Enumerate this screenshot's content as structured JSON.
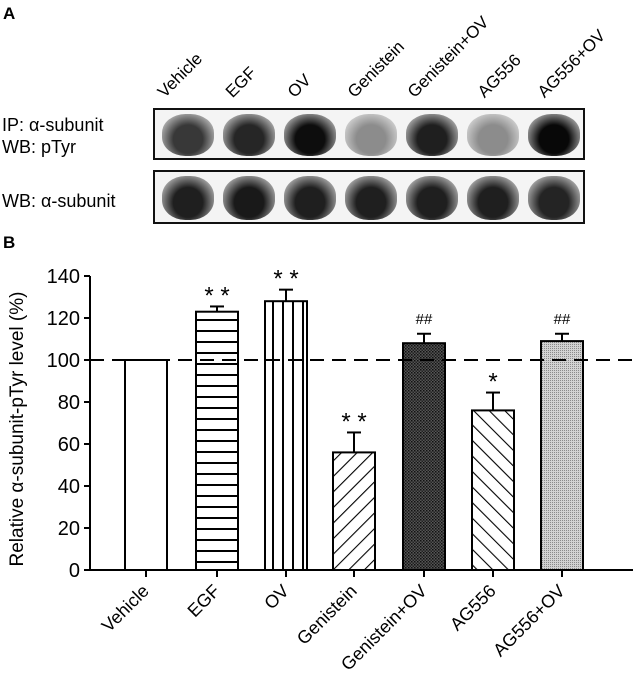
{
  "panel_a": {
    "label": "A",
    "lanes": [
      "Vehicle",
      "EGF",
      "OV",
      "Genistein",
      "Genistein+OV",
      "AG556",
      "AG556+OV"
    ],
    "blot1_label_line1": "IP: α-subunit",
    "blot1_label_line2": "WB: pTyr",
    "blot2_label": "WB: α-subunit",
    "blot1_band_intensity": [
      0.78,
      0.85,
      0.95,
      0.45,
      0.88,
      0.45,
      0.97
    ],
    "blot2_band_intensity": [
      0.88,
      0.9,
      0.88,
      0.88,
      0.88,
      0.88,
      0.86
    ]
  },
  "panel_b": {
    "label": "B"
  },
  "chart_data": {
    "type": "bar",
    "title": "",
    "xlabel": "",
    "ylabel": "Relative α-subunit-pTyr level (%)",
    "ylim": [
      0,
      140
    ],
    "yticks": [
      0,
      20,
      40,
      60,
      80,
      100,
      120,
      140
    ],
    "categories": [
      "Vehicle",
      "EGF",
      "OV",
      "Genistein",
      "Genistein+OV",
      "AG556",
      "AG556+OV"
    ],
    "values": [
      100,
      123,
      128,
      56,
      108,
      76,
      109
    ],
    "errors": [
      0,
      2.5,
      5.5,
      9.5,
      4.5,
      8.5,
      3.5
    ],
    "significance": [
      "",
      "**",
      "**",
      "**",
      "##",
      "*",
      "##"
    ],
    "patterns": [
      "none",
      "horizontal",
      "vertical",
      "diagonal-forward",
      "dense-crosshatch",
      "diagonal-back",
      "fine-dots"
    ],
    "reference_line": {
      "y": 100,
      "style": "dashed"
    },
    "grid": false,
    "legend": null
  }
}
